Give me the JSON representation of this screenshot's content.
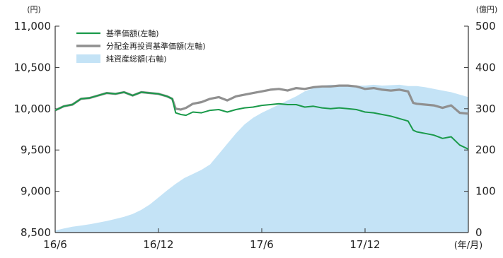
{
  "chart_data": {
    "type": "line",
    "units": {
      "left": "(円)",
      "right": "(億円)",
      "x": "(年/月)"
    },
    "x_ticks": [
      "16/6",
      "16/12",
      "17/6",
      "17/12"
    ],
    "y_left": {
      "min": 8500,
      "max": 11000,
      "ticks": [
        "8,500",
        "9,000",
        "9,500",
        "10,000",
        "10,500",
        "11,000"
      ]
    },
    "y_right": {
      "min": 0,
      "max": 500,
      "ticks": [
        "0",
        "100",
        "200",
        "300",
        "400",
        "500"
      ]
    },
    "x_domain": [
      0,
      24
    ],
    "series": [
      {
        "name": "基準価額(左軸)",
        "axis": "left",
        "color": "#1a9a4a",
        "kind": "line",
        "points": [
          [
            0,
            9980
          ],
          [
            0.5,
            10030
          ],
          [
            1,
            10050
          ],
          [
            1.5,
            10120
          ],
          [
            2,
            10130
          ],
          [
            2.5,
            10160
          ],
          [
            3,
            10190
          ],
          [
            3.5,
            10180
          ],
          [
            4,
            10200
          ],
          [
            4.5,
            10160
          ],
          [
            5,
            10200
          ],
          [
            5.5,
            10190
          ],
          [
            6,
            10180
          ],
          [
            6.5,
            10150
          ],
          [
            6.8,
            10120
          ],
          [
            7,
            9950
          ],
          [
            7.3,
            9930
          ],
          [
            7.6,
            9920
          ],
          [
            8,
            9960
          ],
          [
            8.5,
            9950
          ],
          [
            9,
            9980
          ],
          [
            9.5,
            9990
          ],
          [
            10,
            9960
          ],
          [
            10.5,
            9990
          ],
          [
            11,
            10010
          ],
          [
            11.5,
            10020
          ],
          [
            12,
            10040
          ],
          [
            12.5,
            10050
          ],
          [
            13,
            10060
          ],
          [
            13.5,
            10050
          ],
          [
            14,
            10050
          ],
          [
            14.5,
            10020
          ],
          [
            15,
            10030
          ],
          [
            15.5,
            10010
          ],
          [
            16,
            10000
          ],
          [
            16.5,
            10010
          ],
          [
            17,
            10000
          ],
          [
            17.5,
            9990
          ],
          [
            18,
            9960
          ],
          [
            18.5,
            9950
          ],
          [
            19,
            9930
          ],
          [
            19.5,
            9910
          ],
          [
            20,
            9880
          ],
          [
            20.5,
            9850
          ],
          [
            20.8,
            9740
          ],
          [
            21,
            9720
          ],
          [
            21.5,
            9700
          ],
          [
            22,
            9680
          ],
          [
            22.5,
            9640
          ],
          [
            23,
            9660
          ],
          [
            23.5,
            9560
          ],
          [
            24,
            9510
          ]
        ]
      },
      {
        "name": "分配金再投資基準価額(左軸)",
        "axis": "left",
        "color": "#909090",
        "kind": "line",
        "points": [
          [
            0,
            9980
          ],
          [
            0.5,
            10030
          ],
          [
            1,
            10050
          ],
          [
            1.5,
            10120
          ],
          [
            2,
            10130
          ],
          [
            2.5,
            10160
          ],
          [
            3,
            10190
          ],
          [
            3.5,
            10180
          ],
          [
            4,
            10200
          ],
          [
            4.5,
            10160
          ],
          [
            5,
            10200
          ],
          [
            5.5,
            10190
          ],
          [
            6,
            10180
          ],
          [
            6.5,
            10150
          ],
          [
            6.8,
            10120
          ],
          [
            7,
            10000
          ],
          [
            7.3,
            9990
          ],
          [
            7.6,
            10010
          ],
          [
            8,
            10060
          ],
          [
            8.5,
            10080
          ],
          [
            9,
            10120
          ],
          [
            9.5,
            10140
          ],
          [
            10,
            10100
          ],
          [
            10.5,
            10150
          ],
          [
            11,
            10170
          ],
          [
            11.5,
            10190
          ],
          [
            12,
            10210
          ],
          [
            12.5,
            10230
          ],
          [
            13,
            10240
          ],
          [
            13.5,
            10220
          ],
          [
            14,
            10250
          ],
          [
            14.5,
            10240
          ],
          [
            15,
            10260
          ],
          [
            15.5,
            10270
          ],
          [
            16,
            10270
          ],
          [
            16.5,
            10280
          ],
          [
            17,
            10280
          ],
          [
            17.5,
            10270
          ],
          [
            18,
            10240
          ],
          [
            18.5,
            10250
          ],
          [
            19,
            10230
          ],
          [
            19.5,
            10220
          ],
          [
            20,
            10230
          ],
          [
            20.5,
            10210
          ],
          [
            20.8,
            10070
          ],
          [
            21,
            10060
          ],
          [
            21.5,
            10050
          ],
          [
            22,
            10040
          ],
          [
            22.5,
            10010
          ],
          [
            23,
            10040
          ],
          [
            23.5,
            9950
          ],
          [
            24,
            9940
          ]
        ]
      },
      {
        "name": "純資産総額(右軸)",
        "axis": "right",
        "color": "#c4e3f6",
        "kind": "area",
        "points": [
          [
            0,
            5
          ],
          [
            0.5,
            10
          ],
          [
            1,
            14
          ],
          [
            1.5,
            17
          ],
          [
            2,
            20
          ],
          [
            2.5,
            24
          ],
          [
            3,
            28
          ],
          [
            3.5,
            33
          ],
          [
            4,
            38
          ],
          [
            4.5,
            45
          ],
          [
            5,
            55
          ],
          [
            5.5,
            68
          ],
          [
            6,
            85
          ],
          [
            6.5,
            102
          ],
          [
            7,
            118
          ],
          [
            7.5,
            132
          ],
          [
            8,
            142
          ],
          [
            8.5,
            152
          ],
          [
            9,
            165
          ],
          [
            9.5,
            190
          ],
          [
            10,
            215
          ],
          [
            10.5,
            240
          ],
          [
            11,
            262
          ],
          [
            11.5,
            278
          ],
          [
            12,
            290
          ],
          [
            12.5,
            300
          ],
          [
            13,
            310
          ],
          [
            13.5,
            320
          ],
          [
            14,
            330
          ],
          [
            14.5,
            342
          ],
          [
            15,
            350
          ],
          [
            15.5,
            356
          ],
          [
            16,
            358
          ],
          [
            16.5,
            357
          ],
          [
            17,
            358
          ],
          [
            17.5,
            356
          ],
          [
            18,
            356
          ],
          [
            18.5,
            358
          ],
          [
            19,
            356
          ],
          [
            19.5,
            357
          ],
          [
            20,
            358
          ],
          [
            20.5,
            355
          ],
          [
            21,
            355
          ],
          [
            21.5,
            352
          ],
          [
            22,
            348
          ],
          [
            22.5,
            344
          ],
          [
            23,
            340
          ],
          [
            23.5,
            334
          ],
          [
            24,
            328
          ]
        ]
      }
    ]
  }
}
